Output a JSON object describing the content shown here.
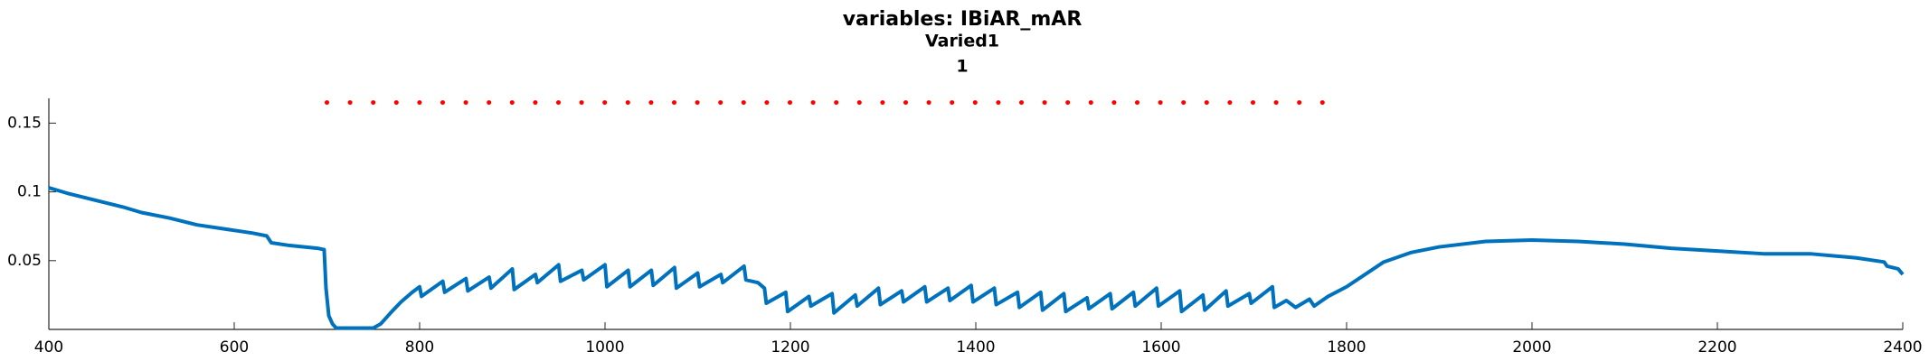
{
  "chart_data": {
    "type": "line",
    "title": [
      "variables: IBiAR_mAR",
      "Varied1",
      "1"
    ],
    "xlim": [
      400,
      2400
    ],
    "xticks": [
      400,
      600,
      800,
      1000,
      1200,
      1400,
      1600,
      1800,
      2000,
      2200,
      2400
    ],
    "ylim": [
      0,
      0.168
    ],
    "yticks": [
      0.05,
      0.1,
      0.15
    ],
    "grid": false,
    "series": [
      {
        "color": "#0072bd",
        "line_style": "solid",
        "x": [
          400,
          420,
          450,
          480,
          500,
          530,
          560,
          590,
          620,
          635,
          640,
          660,
          690,
          697,
          699,
          702,
          706,
          710,
          750,
          758,
          770,
          780,
          792,
          800,
          802,
          825,
          827,
          850,
          852,
          875,
          877,
          900,
          902,
          925,
          927,
          950,
          952,
          975,
          977,
          1000,
          1002,
          1025,
          1027,
          1050,
          1052,
          1075,
          1077,
          1100,
          1102,
          1125,
          1127,
          1150,
          1152,
          1165,
          1172,
          1174,
          1195,
          1197,
          1220,
          1222,
          1245,
          1247,
          1270,
          1272,
          1295,
          1297,
          1320,
          1322,
          1345,
          1347,
          1370,
          1372,
          1395,
          1397,
          1420,
          1422,
          1445,
          1447,
          1470,
          1472,
          1495,
          1497,
          1520,
          1522,
          1545,
          1547,
          1570,
          1572,
          1595,
          1597,
          1620,
          1622,
          1645,
          1647,
          1670,
          1672,
          1695,
          1697,
          1720,
          1722,
          1735,
          1745,
          1760,
          1765,
          1780,
          1800,
          1820,
          1840,
          1870,
          1900,
          1950,
          2000,
          2050,
          2100,
          2150,
          2200,
          2250,
          2300,
          2350,
          2380,
          2383,
          2395,
          2400
        ],
        "values": [
          0.103,
          0.099,
          0.094,
          0.089,
          0.085,
          0.081,
          0.076,
          0.073,
          0.07,
          0.068,
          0.063,
          0.061,
          0.059,
          0.058,
          0.03,
          0.01,
          0.004,
          0.001,
          0.001,
          0.004,
          0.013,
          0.02,
          0.027,
          0.031,
          0.024,
          0.035,
          0.027,
          0.037,
          0.028,
          0.038,
          0.03,
          0.044,
          0.029,
          0.04,
          0.034,
          0.047,
          0.035,
          0.043,
          0.036,
          0.047,
          0.031,
          0.043,
          0.031,
          0.043,
          0.032,
          0.045,
          0.03,
          0.041,
          0.031,
          0.04,
          0.034,
          0.046,
          0.036,
          0.034,
          0.03,
          0.019,
          0.027,
          0.013,
          0.024,
          0.017,
          0.026,
          0.012,
          0.025,
          0.017,
          0.03,
          0.018,
          0.028,
          0.02,
          0.031,
          0.02,
          0.03,
          0.021,
          0.032,
          0.02,
          0.03,
          0.018,
          0.027,
          0.016,
          0.027,
          0.014,
          0.026,
          0.013,
          0.023,
          0.015,
          0.026,
          0.015,
          0.027,
          0.017,
          0.03,
          0.017,
          0.028,
          0.013,
          0.025,
          0.014,
          0.028,
          0.017,
          0.026,
          0.019,
          0.031,
          0.016,
          0.021,
          0.016,
          0.022,
          0.017,
          0.024,
          0.031,
          0.04,
          0.049,
          0.056,
          0.06,
          0.064,
          0.065,
          0.064,
          0.062,
          0.059,
          0.057,
          0.055,
          0.055,
          0.052,
          0.049,
          0.046,
          0.044,
          0.04
        ]
      },
      {
        "color": "#ff0000",
        "line_style": "dotted",
        "x": [
          700,
          1780
        ],
        "values": [
          0.165,
          0.165
        ]
      }
    ]
  }
}
